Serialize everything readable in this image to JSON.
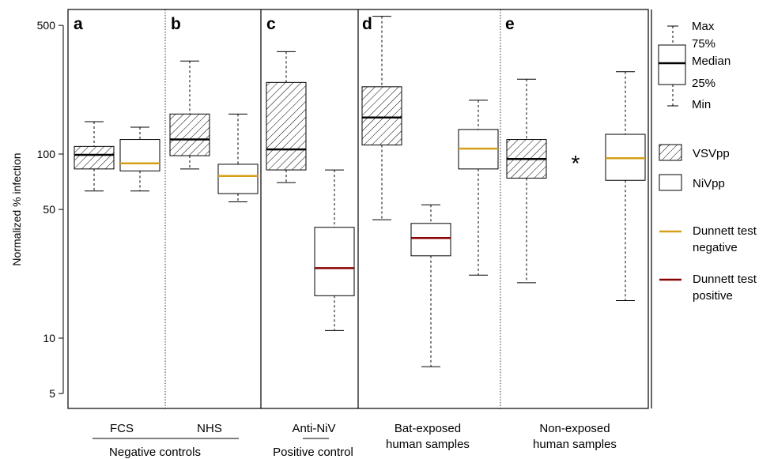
{
  "chart_data": {
    "type": "box",
    "ylabel": "Normalized % infection",
    "yscale": "log",
    "ylim": [
      4,
      600
    ],
    "yticks": [
      {
        "value": 500,
        "label": "500"
      },
      {
        "value": 100,
        "label": "100"
      },
      {
        "value": 50,
        "label": "50"
      },
      {
        "value": 10,
        "label": "10"
      },
      {
        "value": 5,
        "label": "5"
      }
    ],
    "panel_letters": [
      "a",
      "b",
      "c",
      "d",
      "e"
    ],
    "group_labels": {
      "fcs": "FCS",
      "nhs": "NHS",
      "neg": "Negative controls",
      "antiniv": "Anti-NiV",
      "pos": "Positive control",
      "bat1": "Bat-exposed",
      "bat2": "human samples",
      "non1": "Non-exposed",
      "non2": "human samples"
    },
    "boxes": [
      {
        "group": "FCS",
        "pseudotype": "VSVpp",
        "min": 63,
        "q1": 83,
        "median": 99,
        "q3": 110,
        "max": 150,
        "median_color": "#000000"
      },
      {
        "group": "FCS",
        "pseudotype": "NiVpp",
        "min": 63,
        "q1": 81,
        "median": 89,
        "q3": 120,
        "max": 140,
        "median_color": "#d4a017"
      },
      {
        "group": "NHS",
        "pseudotype": "VSVpp",
        "min": 83,
        "q1": 98,
        "median": 120,
        "q3": 165,
        "max": 320,
        "median_color": "#000000"
      },
      {
        "group": "NHS",
        "pseudotype": "NiVpp",
        "min": 55,
        "q1": 61,
        "median": 76,
        "q3": 88,
        "max": 165,
        "median_color": "#d4a017"
      },
      {
        "group": "Anti-NiV",
        "pseudotype": "VSVpp",
        "min": 70,
        "q1": 82,
        "median": 106,
        "q3": 245,
        "max": 360,
        "median_color": "#000000"
      },
      {
        "group": "Anti-NiV",
        "pseudotype": "NiVpp",
        "min": 11,
        "q1": 17,
        "median": 24,
        "q3": 40,
        "max": 82,
        "median_color": "#8b0000"
      },
      {
        "group": "Bat-exposed",
        "pseudotype": "VSVpp",
        "min": 44,
        "q1": 112,
        "median": 158,
        "q3": 232,
        "max": 560,
        "median_color": "#000000"
      },
      {
        "group": "Bat-exposed",
        "pseudotype": "NiVpp",
        "min": 7,
        "q1": 28,
        "median": 35,
        "q3": 42,
        "max": 53,
        "median_color": "#8b0000"
      },
      {
        "group": "Bat-exposed",
        "pseudotype": "NiVpp",
        "min": 22,
        "q1": 83,
        "median": 107,
        "q3": 136,
        "max": 196,
        "median_color": "#d4a017"
      },
      {
        "group": "Non-exposed",
        "pseudotype": "VSVpp",
        "min": 20,
        "q1": 74,
        "median": 94,
        "q3": 120,
        "max": 255,
        "median_color": "#000000"
      },
      {
        "group": "Non-exposed",
        "pseudotype": "NiVpp",
        "min": 16,
        "q1": 72,
        "median": 95,
        "q3": 128,
        "max": 280,
        "median_color": "#d4a017"
      }
    ],
    "star": {
      "symbol": "*",
      "color": "#8b0000",
      "y": 95
    },
    "legend": {
      "max": "Max",
      "q75": "75%",
      "median": "Median",
      "q25": "25%",
      "min": "Min",
      "vsv": "VSVpp",
      "niv": "NiVpp",
      "neg1": "Dunnett test",
      "neg2": "negative",
      "pos1": "Dunnett test",
      "pos2": "positive",
      "negative_color": "#d4a017",
      "positive_color": "#8b0000"
    }
  }
}
